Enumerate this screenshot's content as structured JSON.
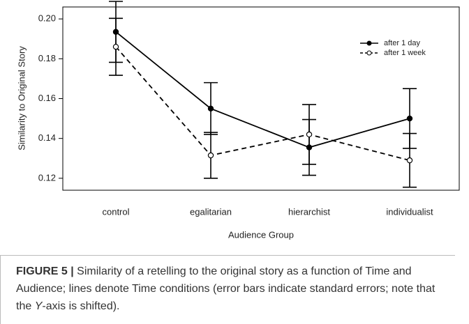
{
  "chart_data": {
    "type": "line",
    "ylabel": "Similarity to Original Story",
    "xlabel": "Audience Group",
    "categories": [
      "control",
      "egalitarian",
      "hierarchist",
      "individualist"
    ],
    "series": [
      {
        "name": "after 1 day",
        "color": "#000000",
        "dash": false,
        "filled": true,
        "values": [
          0.1935,
          0.155,
          0.1355,
          0.15
        ],
        "errors": [
          0.0153,
          0.013,
          0.014,
          0.015
        ]
      },
      {
        "name": "after 1 week",
        "color": "#000000",
        "dash": true,
        "filled": false,
        "values": [
          0.186,
          0.1315,
          0.142,
          0.129
        ],
        "errors": [
          0.0143,
          0.0115,
          0.015,
          0.0135
        ]
      }
    ],
    "ylim": [
      0.114,
      0.206
    ],
    "yticks": [
      0.12,
      0.14,
      0.16,
      0.18,
      {
        "value": 0.2,
        "label": "0.20"
      }
    ],
    "legend": "upper right"
  },
  "caption": {
    "label": "FIGURE 5 |",
    "parts": [
      " Similarity of a retelling to the original story as a function of Time and Audience; lines denote Time conditions (error bars indicate standard errors; note that the ",
      "Y",
      "-axis is shifted)."
    ]
  }
}
